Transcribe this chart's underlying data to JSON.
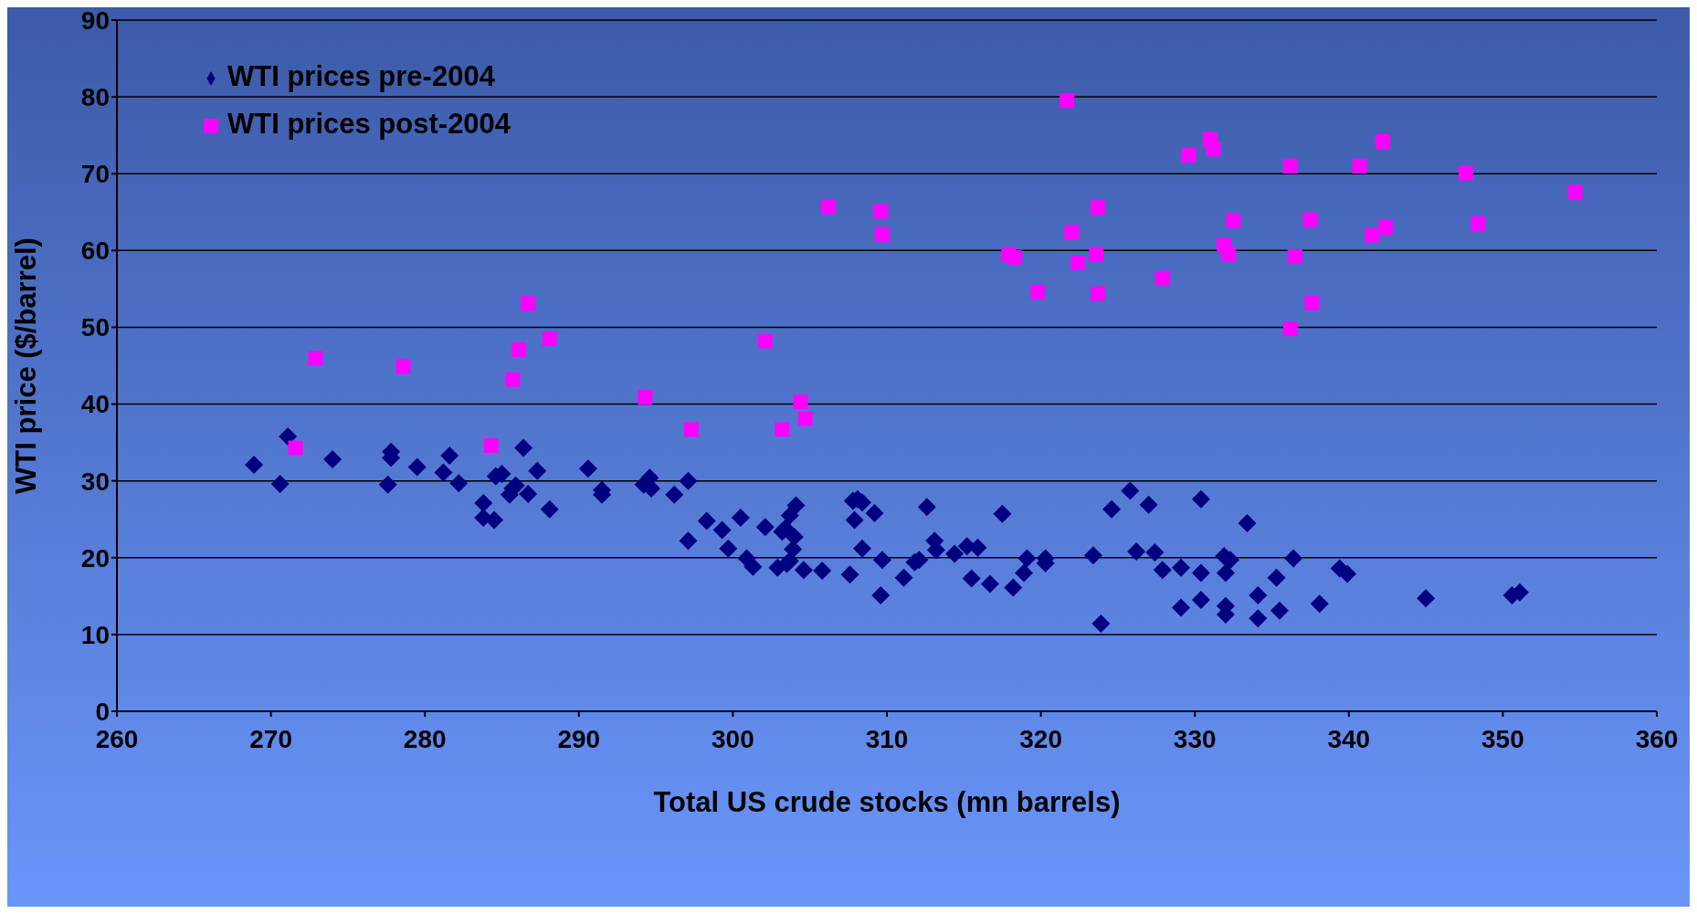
{
  "chart_data": {
    "type": "scatter",
    "xlabel": "Total US crude stocks (mn barrels)",
    "ylabel": "WTI price ($/barrel)",
    "xlim": [
      260,
      360
    ],
    "xticks": [
      260,
      270,
      280,
      290,
      300,
      310,
      320,
      330,
      340,
      350,
      360
    ],
    "ylim": [
      0,
      90
    ],
    "yticks": [
      0,
      10,
      20,
      30,
      40,
      50,
      60,
      70,
      80,
      90
    ],
    "grid": "y",
    "legend": "top left",
    "series": [
      {
        "name": "WTI prices pre-2004",
        "color": "#000080",
        "marker": "diamond",
        "x": [
          268.9,
          270.6,
          271.1,
          274.0,
          277.6,
          277.8,
          277.8,
          279.5,
          281.2,
          281.6,
          282.2,
          283.8,
          283.8,
          284.5,
          284.6,
          285.0,
          285.5,
          285.7,
          285.9,
          286.4,
          286.7,
          287.3,
          288.1,
          290.6,
          291.5,
          291.5,
          294.2,
          294.6,
          294.7,
          296.2,
          297.1,
          297.1,
          298.3,
          299.3,
          299.7,
          300.5,
          300.9,
          301.3,
          302.1,
          302.9,
          303.2,
          303.4,
          303.5,
          303.7,
          303.7,
          303.9,
          304.0,
          304.1,
          304.6,
          305.8,
          307.6,
          307.8,
          307.9,
          308.1,
          308.4,
          308.4,
          309.2,
          309.6,
          309.7,
          311.1,
          311.8,
          312.1,
          312.6,
          313.1,
          313.2,
          314.4,
          315.2,
          315.5,
          315.9,
          316.7,
          317.5,
          318.2,
          318.9,
          319.1,
          320.3,
          320.3,
          323.4,
          323.9,
          324.6,
          325.8,
          326.2,
          327.0,
          327.4,
          327.9,
          329.1,
          329.1,
          330.4,
          330.4,
          330.4,
          331.9,
          332.0,
          332.0,
          332.0,
          332.3,
          333.4,
          334.1,
          334.1,
          335.3,
          335.5,
          336.4,
          338.1,
          339.4,
          339.9,
          345.0,
          350.6,
          351.1
        ],
        "values": [
          32.1,
          29.6,
          35.8,
          32.8,
          29.5,
          33.8,
          33.0,
          31.8,
          31.1,
          33.3,
          29.7,
          27.1,
          25.2,
          24.9,
          30.6,
          30.9,
          28.2,
          29.0,
          29.4,
          34.3,
          28.3,
          31.3,
          26.3,
          31.6,
          28.8,
          28.2,
          29.5,
          30.4,
          29.0,
          28.2,
          30.0,
          22.2,
          24.8,
          23.6,
          21.2,
          25.2,
          19.9,
          18.8,
          24.0,
          18.7,
          23.4,
          23.8,
          19.2,
          19.6,
          25.5,
          21.1,
          22.7,
          26.8,
          18.4,
          18.3,
          17.8,
          27.4,
          24.9,
          27.6,
          27.2,
          21.2,
          25.8,
          15.1,
          19.7,
          17.4,
          19.4,
          19.7,
          26.6,
          22.2,
          21.0,
          20.5,
          21.5,
          17.3,
          21.3,
          16.6,
          25.7,
          16.1,
          18.0,
          19.9,
          19.9,
          19.3,
          20.3,
          11.4,
          26.3,
          28.7,
          20.8,
          26.9,
          20.7,
          18.4,
          18.7,
          13.5,
          27.6,
          18.0,
          14.5,
          20.2,
          18.0,
          13.7,
          12.6,
          19.7,
          24.5,
          15.1,
          12.1,
          17.4,
          13.1,
          19.9,
          14.0,
          18.6,
          17.9,
          14.7,
          15.1,
          15.5
        ]
      },
      {
        "name": "WTI prices post-2004",
        "color": "#ff00ff",
        "marker": "square",
        "x": [
          272.9,
          271.6,
          278.6,
          284.3,
          285.7,
          286.1,
          286.7,
          288.1,
          294.3,
          297.3,
          302.1,
          303.2,
          304.4,
          304.7,
          306.2,
          309.6,
          309.7,
          317.9,
          318.3,
          319.8,
          321.7,
          322.0,
          322.4,
          323.6,
          323.7,
          323.7,
          327.9,
          329.6,
          331.0,
          331.2,
          331.9,
          332.2,
          332.5,
          336.2,
          336.2,
          336.5,
          337.5,
          337.6,
          340.7,
          341.5,
          342.2,
          342.4,
          347.6,
          348.4,
          354.7
        ],
        "values": [
          46.0,
          34.3,
          44.9,
          34.6,
          43.2,
          47.1,
          53.1,
          48.5,
          40.9,
          36.7,
          48.2,
          36.7,
          40.3,
          38.1,
          65.7,
          65.1,
          62.1,
          59.5,
          59.1,
          54.6,
          79.5,
          62.4,
          58.4,
          59.5,
          54.4,
          65.6,
          56.4,
          72.4,
          74.5,
          73.2,
          60.7,
          59.5,
          63.9,
          49.8,
          71.0,
          59.2,
          64.0,
          53.2,
          71.0,
          62.0,
          74.2,
          63.0,
          70.1,
          63.5,
          67.6
        ]
      }
    ]
  }
}
